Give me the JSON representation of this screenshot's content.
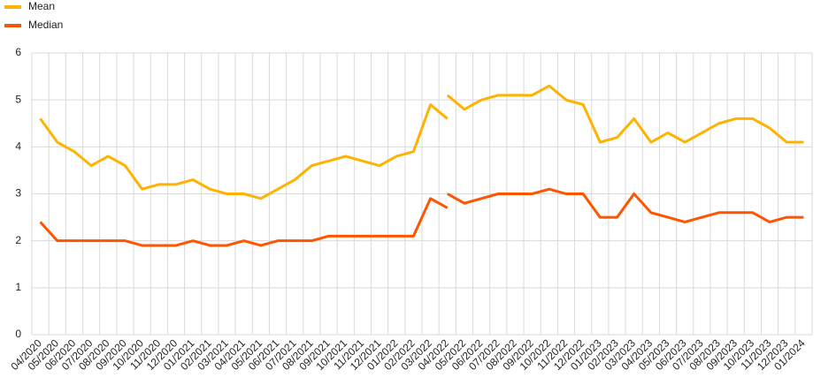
{
  "chart_data": {
    "type": "line",
    "categories": [
      "04/2020",
      "05/2020",
      "06/2020",
      "07/2020",
      "08/2020",
      "09/2020",
      "10/2020",
      "11/2020",
      "12/2020",
      "01/2021",
      "02/2021",
      "03/2021",
      "04/2021",
      "05/2021",
      "06/2021",
      "07/2021",
      "08/2021",
      "09/2021",
      "10/2021",
      "11/2021",
      "12/2021",
      "01/2022",
      "02/2022",
      "03/2022",
      "04/2022",
      "05/2022",
      "06/2022",
      "07/2022",
      "08/2022",
      "09/2022",
      "10/2022",
      "11/2022",
      "12/2022",
      "01/2023",
      "02/2023",
      "03/2023",
      "04/2023",
      "05/2023",
      "06/2023",
      "07/2023",
      "08/2023",
      "09/2023",
      "10/2023",
      "11/2023",
      "12/2023",
      "01/2024"
    ],
    "series": [
      {
        "name": "Mean",
        "color": "#ffb300",
        "values": [
          4.6,
          4.1,
          3.9,
          3.6,
          3.8,
          3.6,
          3.1,
          3.2,
          3.2,
          3.3,
          3.1,
          3.0,
          3.0,
          2.9,
          3.1,
          3.3,
          3.6,
          3.7,
          3.8,
          3.7,
          3.6,
          3.8,
          3.9,
          4.9,
          4.6,
          null,
          null,
          null,
          null,
          null,
          null,
          null,
          null,
          null,
          null,
          null,
          null,
          null,
          null,
          null,
          null,
          null,
          null,
          null,
          null,
          null
        ],
        "values_2": [
          null,
          null,
          null,
          null,
          null,
          null,
          null,
          null,
          null,
          null,
          null,
          null,
          null,
          null,
          null,
          null,
          null,
          null,
          null,
          null,
          null,
          null,
          null,
          null,
          5.1,
          4.8,
          5.0,
          5.1,
          5.1,
          5.1,
          5.3,
          5.0,
          4.9,
          4.1,
          4.2,
          4.6,
          4.1,
          4.3,
          4.1,
          4.3,
          4.5,
          4.6,
          4.6,
          4.4,
          4.1,
          4.1
        ]
      },
      {
        "name": "Median",
        "color": "#ff5500",
        "values": [
          2.4,
          2.0,
          2.0,
          2.0,
          2.0,
          2.0,
          1.9,
          1.9,
          1.9,
          2.0,
          1.9,
          1.9,
          2.0,
          1.9,
          2.0,
          2.0,
          2.0,
          2.1,
          2.1,
          2.1,
          2.1,
          2.1,
          2.1,
          2.9,
          2.7,
          null,
          null,
          null,
          null,
          null,
          null,
          null,
          null,
          null,
          null,
          null,
          null,
          null,
          null,
          null,
          null,
          null,
          null,
          null,
          null,
          null
        ],
        "values_2": [
          null,
          null,
          null,
          null,
          null,
          null,
          null,
          null,
          null,
          null,
          null,
          null,
          null,
          null,
          null,
          null,
          null,
          null,
          null,
          null,
          null,
          null,
          null,
          null,
          3.0,
          2.8,
          2.9,
          3.0,
          3.0,
          3.0,
          3.1,
          3.0,
          3.0,
          2.5,
          2.5,
          3.0,
          2.6,
          2.5,
          2.4,
          2.5,
          2.6,
          2.6,
          2.6,
          2.4,
          2.5,
          2.5
        ]
      }
    ],
    "ylim": [
      0,
      6
    ],
    "yticks": [
      0,
      1,
      2,
      3,
      4,
      5,
      6
    ],
    "grid": true,
    "legend": "top-left"
  }
}
